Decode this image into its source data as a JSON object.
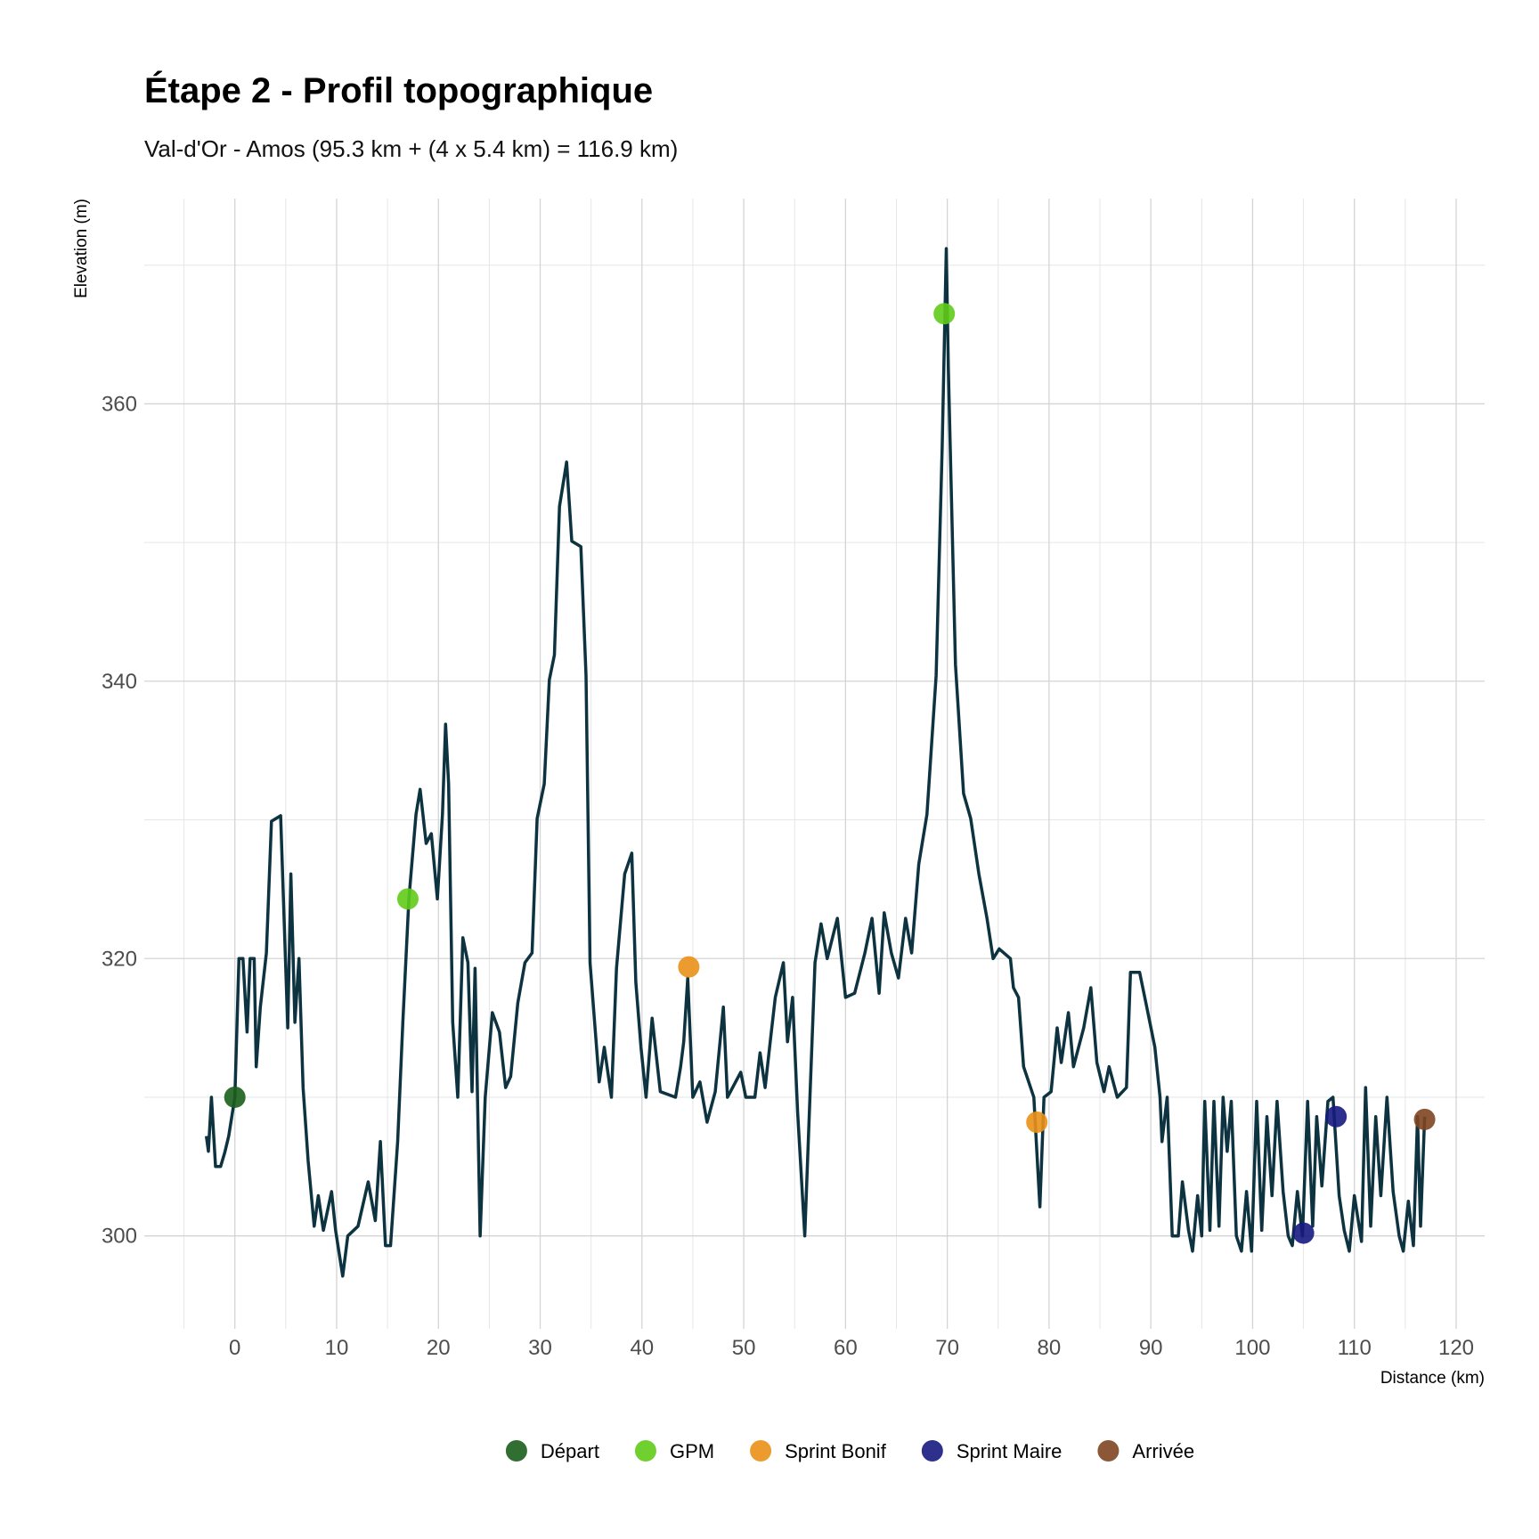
{
  "chart_data": {
    "type": "line",
    "title": "Étape 2 - Profil topographique",
    "subtitle": "Val-d'Or - Amos (95.3 km + (4 x 5.4 km) = 116.9 km)",
    "x_label": "Distance (km)",
    "y_label": "Elevation (m)",
    "xlim": [
      -8.9,
      122.8
    ],
    "ylim": [
      293.3,
      374.8
    ],
    "xticks": [
      0,
      10,
      20,
      30,
      40,
      50,
      60,
      70,
      80,
      90,
      100,
      110,
      120
    ],
    "yticks": [
      300,
      320,
      340,
      360
    ],
    "x_minor_ticks": [
      -5,
      5,
      15,
      25,
      35,
      45,
      55,
      65,
      75,
      85,
      95,
      105,
      115
    ],
    "y_minor_ticks": [
      310,
      330,
      350,
      370
    ],
    "grid": true,
    "legend": "bottom",
    "profile": {
      "color": "#0d3340",
      "x": [
        -2.8,
        -2.6,
        -2.3,
        -1.9,
        -1.4,
        -1,
        -0.6,
        0,
        0.4,
        0.8,
        1.2,
        1.5,
        1.9,
        2.1,
        2.5,
        3.1,
        3.6,
        4.5,
        5.2,
        5.5,
        5.9,
        6.3,
        6.7,
        7.2,
        7.8,
        8.2,
        8.7,
        9.5,
        9.9,
        10.6,
        11.1,
        12.1,
        13.1,
        13.8,
        14.3,
        14.8,
        15.3,
        16,
        16.5,
        17.1,
        17.8,
        18.2,
        18.8,
        19.3,
        19.9,
        20.4,
        20.7,
        21,
        21.4,
        21.9,
        22.4,
        22.9,
        23.3,
        23.6,
        24.1,
        24.6,
        25.3,
        26,
        26.6,
        27.1,
        27.8,
        28.5,
        29.2,
        29.7,
        30.4,
        30.9,
        31.4,
        31.9,
        32.6,
        33.1,
        34,
        34.5,
        34.9,
        35.8,
        36.3,
        37,
        37.5,
        38.3,
        39,
        39.4,
        39.9,
        40.4,
        41,
        41.8,
        43.3,
        43.8,
        44.1,
        44.5,
        45,
        45.7,
        46.4,
        47.2,
        48,
        48.4,
        49.7,
        50.2,
        51.1,
        51.6,
        52.1,
        52.6,
        53.1,
        53.9,
        54.3,
        54.8,
        55.3,
        56,
        56.5,
        57,
        57.6,
        58.2,
        59.2,
        60,
        60.9,
        61.9,
        62.6,
        63.3,
        63.8,
        64.5,
        65.2,
        65.9,
        66.5,
        67.2,
        68,
        68.9,
        69.5,
        69.9,
        70.1,
        70.8,
        71.6,
        72.3,
        73.1,
        73.9,
        74.5,
        75.1,
        76.2,
        76.5,
        77,
        77.5,
        78.5,
        79.1,
        79.5,
        80.2,
        80.8,
        81.2,
        81.9,
        82.4,
        83.4,
        84.1,
        84.7,
        85.4,
        85.9,
        86.7,
        87.6,
        88,
        88.9,
        89.6,
        90.4,
        90.9,
        91.1,
        91.6,
        92.1,
        92.7,
        93.1,
        93.7,
        94.1,
        94.6,
        95,
        95.3,
        95.8,
        96.2,
        96.7,
        97.1,
        97.5,
        97.9,
        98.4,
        98.9,
        99.4,
        99.9,
        100.4,
        100.9,
        101.4,
        101.9,
        102.4,
        103,
        103.5,
        103.9,
        104.4,
        104.9,
        105.4,
        105.9,
        106.3,
        106.8,
        107.4,
        107.9,
        108.5,
        109,
        109.5,
        110,
        110.7,
        111.1,
        111.6,
        112.1,
        112.6,
        113.2,
        113.8,
        114.4,
        114.8,
        115.3,
        115.8,
        116.2,
        116.5,
        116.9
      ],
      "values": [
        307.2,
        306.1,
        310,
        305,
        305,
        306,
        307.2,
        310,
        320,
        320,
        314.7,
        320,
        320,
        312.2,
        316.5,
        320.4,
        329.9,
        330.3,
        315,
        326.1,
        315.4,
        320,
        310.7,
        305.4,
        300.7,
        302.9,
        300.4,
        303.2,
        300.4,
        297.1,
        300,
        300.7,
        303.9,
        301.1,
        306.8,
        299.3,
        299.3,
        306.8,
        315.4,
        324.3,
        330.4,
        332.2,
        328.3,
        329,
        324.3,
        330.4,
        336.9,
        332.6,
        315.4,
        310,
        321.5,
        319.7,
        310.4,
        319.3,
        300,
        310,
        316.1,
        314.7,
        310.7,
        311.5,
        316.8,
        319.7,
        320.4,
        330.1,
        332.6,
        340.1,
        341.9,
        352.6,
        355.8,
        350.1,
        349.7,
        340.4,
        319.7,
        311.1,
        313.6,
        310,
        319.3,
        326.1,
        327.6,
        318.3,
        313.6,
        310,
        315.7,
        310.4,
        310,
        312.2,
        314,
        318.6,
        310,
        311.1,
        308.2,
        310.4,
        316.5,
        310,
        311.8,
        310,
        310,
        313.2,
        310.7,
        314,
        317.2,
        319.7,
        314,
        317.2,
        308.9,
        300,
        310,
        319.7,
        322.5,
        320,
        322.9,
        317.2,
        317.5,
        320.4,
        322.9,
        317.5,
        323.3,
        320.4,
        318.6,
        322.9,
        320.4,
        326.8,
        330.4,
        340.4,
        356.9,
        371.2,
        362.6,
        341.2,
        331.9,
        330.1,
        326.1,
        322.9,
        320,
        320.7,
        320,
        317.9,
        317.2,
        312.2,
        310,
        302.1,
        310,
        310.4,
        315,
        312.5,
        316.1,
        312.2,
        315,
        317.9,
        312.5,
        310.4,
        312.2,
        310,
        310.7,
        319,
        319,
        316.5,
        313.6,
        310,
        306.8,
        310,
        300,
        300,
        303.9,
        300.4,
        298.9,
        302.9,
        300,
        309.7,
        300.4,
        309.7,
        300.7,
        310,
        306.1,
        309.7,
        300,
        298.9,
        303.2,
        298.9,
        309.7,
        300.4,
        308.6,
        302.9,
        309.7,
        303.2,
        300,
        299.3,
        303.2,
        300,
        309.7,
        300.7,
        308.6,
        303.6,
        309.7,
        310,
        302.9,
        300.4,
        298.9,
        302.9,
        299.6,
        310.7,
        300.7,
        308.6,
        302.9,
        310,
        303.2,
        300,
        298.9,
        302.5,
        299.3,
        308.6,
        300.7,
        308.6
      ]
    },
    "series": [
      {
        "name": "Départ",
        "color": "#1b5e1b",
        "x": [
          0
        ],
        "values": [
          310
        ]
      },
      {
        "name": "GPM",
        "color": "#5fcb1a",
        "x": [
          17,
          69.7
        ],
        "values": [
          324.3,
          366.5
        ]
      },
      {
        "name": "Sprint Bonif",
        "color": "#ea9018",
        "x": [
          44.6,
          78.8
        ],
        "values": [
          319.4,
          308.2
        ]
      },
      {
        "name": "Sprint Maire",
        "color": "#161a80",
        "x": [
          105,
          108.2
        ],
        "values": [
          300.2,
          308.6
        ]
      },
      {
        "name": "Arrivée",
        "color": "#7e4521",
        "x": [
          116.9
        ],
        "values": [
          308.4
        ]
      }
    ]
  }
}
